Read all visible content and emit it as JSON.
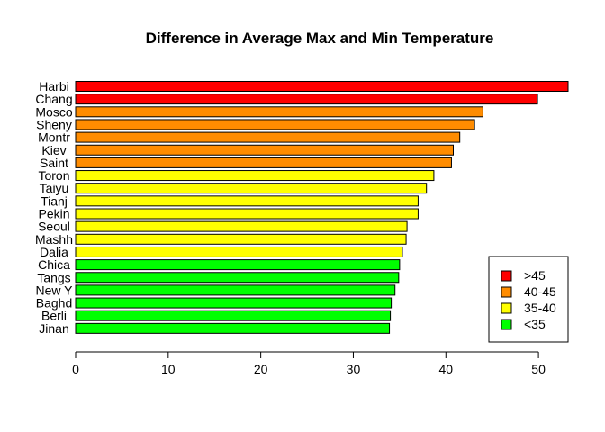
{
  "chart_data": {
    "type": "bar",
    "orientation": "horizontal",
    "title": "Difference in Average Max and Min Temperature",
    "xlabel": "",
    "ylabel": "",
    "xlim": [
      0,
      53.2
    ],
    "x_ticks": [
      0,
      10,
      20,
      30,
      40,
      50
    ],
    "grid": false,
    "categories": [
      "Harbi",
      "Chang",
      "Mosco",
      "Sheny",
      "Montr",
      "Kiev",
      "Saint",
      "Toron",
      "Taiyu",
      "Tianj",
      "Pekin",
      "Seoul",
      "Mashh",
      "Dalia",
      "Chica",
      "Tangs",
      "New Y",
      "Baghd",
      "Berli",
      "Jinan"
    ],
    "values": [
      53.2,
      49.9,
      44.0,
      43.1,
      41.5,
      40.8,
      40.6,
      38.7,
      37.9,
      37.0,
      37.0,
      35.8,
      35.7,
      35.3,
      35.0,
      34.9,
      34.5,
      34.1,
      34.0,
      33.9
    ],
    "groups": [
      ">45",
      ">45",
      "40-45",
      "40-45",
      "40-45",
      "40-45",
      "40-45",
      "35-40",
      "35-40",
      "35-40",
      "35-40",
      "35-40",
      "35-40",
      "35-40",
      "<35",
      "<35",
      "<35",
      "<35",
      "<35",
      "<35"
    ],
    "legend": {
      "placement": "bottom-right",
      "entries": [
        {
          "label": ">45",
          "color": "#ff0000"
        },
        {
          "label": "40-45",
          "color": "#ff8c00"
        },
        {
          "label": "35-40",
          "color": "#ffff00"
        },
        {
          "label": "<35",
          "color": "#00ff00"
        }
      ]
    }
  }
}
